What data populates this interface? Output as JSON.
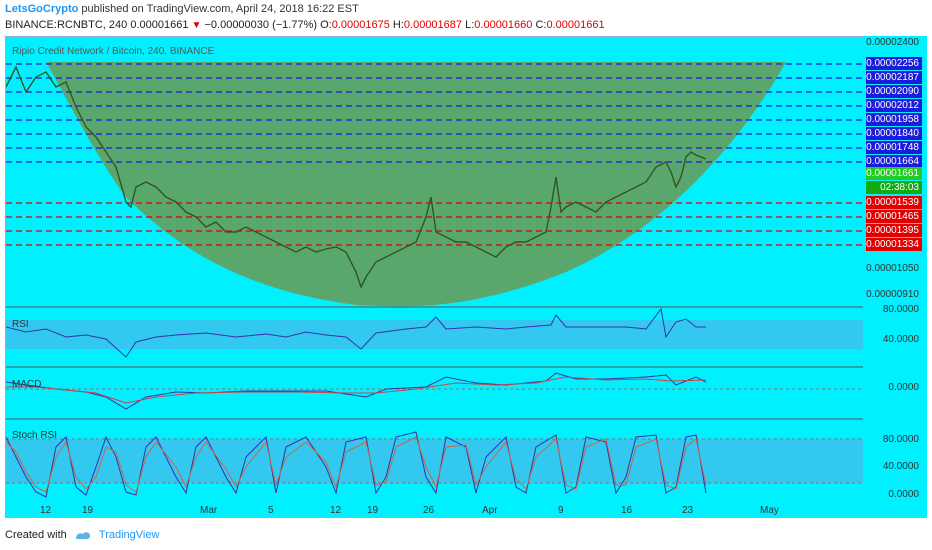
{
  "header": {
    "author": "LetsGoCrypto",
    "published": "published on TradingView.com, April 24, 2018 16:22 EST",
    "symbol": "BINANCE:RCNBTC, 240",
    "last": "0.00001661",
    "change": "−0.00000030 (−1.77%)",
    "o_label": "O:",
    "o_val": "0.00001675",
    "h_label": "H:",
    "h_val": "0.00001687",
    "l_label": "L:",
    "l_val": "0.00001660",
    "c_label": "C:",
    "c_val": "0.00001661"
  },
  "chart": {
    "title": "Ripio Credit Network / Bitcoin, 240, BINANCE",
    "top_tick": "0.00002400",
    "blue_levels": [
      "0.00002256",
      "0.00002187",
      "0.00002090",
      "0.00002012",
      "0.00001958",
      "0.00001840",
      "0.00001748",
      "0.00001664"
    ],
    "current_price": "0.00001661",
    "countdown": "02:38:03",
    "red_levels": [
      "0.00001539",
      "0.00001465",
      "0.00001395",
      "0.00001334"
    ],
    "low_ticks": [
      "0.00001050",
      "0.00000910"
    ],
    "x_labels": [
      "12",
      "19",
      "Mar",
      "5",
      "12",
      "19",
      "26",
      "Apr",
      "9",
      "16",
      "23",
      "May"
    ],
    "colors": {
      "background": "#00f0ff",
      "accent": "#2196f3",
      "blue_line": "#1c1cdc",
      "red_line": "#e00000",
      "cup_fill": "#6a9a55"
    }
  },
  "rsi": {
    "label": "RSI",
    "tick_80": "80.0000",
    "tick_40": "40.0000"
  },
  "macd": {
    "label": "MACD",
    "tick_0": "0.0000"
  },
  "stoch": {
    "label": "Stoch RSI",
    "tick_80": "80.0000",
    "tick_40": "40.0000",
    "tick_0": "0.0000"
  },
  "footer": {
    "created": "Created with",
    "brand": "TradingView"
  }
}
